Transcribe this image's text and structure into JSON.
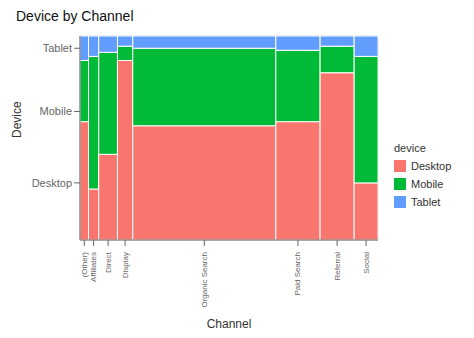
{
  "chart_data": {
    "type": "mosaic",
    "title": "Device by Channel",
    "xlabel": "Channel",
    "ylabel": "Device",
    "legend_title": "device",
    "categories": [
      "(Other)",
      "Affiliates",
      "Direct",
      "Display",
      "Organic Search",
      "Paid Search",
      "Referral",
      "Social"
    ],
    "widths": [
      0.025,
      0.03,
      0.055,
      0.045,
      0.42,
      0.13,
      0.1,
      0.07
    ],
    "series": [
      {
        "name": "Desktop",
        "color": "#F8766D",
        "values": [
          0.58,
          0.25,
          0.42,
          0.88,
          0.56,
          0.58,
          0.82,
          0.28
        ]
      },
      {
        "name": "Mobile",
        "color": "#00BA38",
        "values": [
          0.3,
          0.65,
          0.5,
          0.07,
          0.38,
          0.35,
          0.13,
          0.62
        ]
      },
      {
        "name": "Tablet",
        "color": "#619CFF",
        "values": [
          0.12,
          0.1,
          0.08,
          0.05,
          0.06,
          0.07,
          0.05,
          0.1
        ]
      }
    ],
    "xlim": [
      0,
      0.875
    ],
    "ylim": [
      0,
      1
    ],
    "yticks": [
      {
        "value": 0.28,
        "label": "Desktop"
      },
      {
        "value": 0.63,
        "label": "Mobile"
      },
      {
        "value": 0.94,
        "label": "Tablet"
      }
    ],
    "stacked": true,
    "grid": true,
    "legend": "right"
  }
}
